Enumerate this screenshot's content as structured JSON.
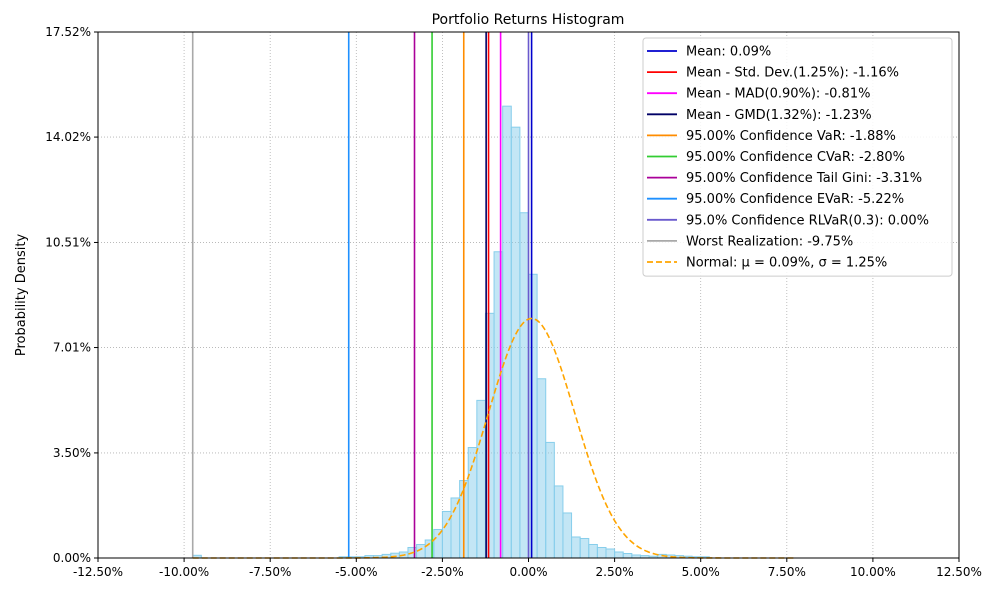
{
  "chart_data": {
    "type": "bar",
    "title": "Portfolio Returns Histogram",
    "ylabel": "Probability Density",
    "xlabel": "",
    "xlim": [
      -0.125,
      0.125
    ],
    "ylim": [
      0,
      0.1752
    ],
    "grid": true,
    "legend_position": "top-right",
    "x_ticks": [
      -0.125,
      -0.1,
      -0.075,
      -0.05,
      -0.025,
      0.0,
      0.025,
      0.05,
      0.075,
      0.1,
      0.125
    ],
    "x_tick_labels": [
      "-12.50%",
      "-10.00%",
      "-7.50%",
      "-5.00%",
      "-2.50%",
      "0.00%",
      "2.50%",
      "5.00%",
      "7.50%",
      "10.00%",
      "12.50%"
    ],
    "y_ticks": [
      0.0,
      0.035,
      0.0701,
      0.1051,
      0.1402,
      0.1752
    ],
    "y_tick_labels": [
      "0.00%",
      "3.50%",
      "7.01%",
      "10.51%",
      "14.02%",
      "17.52%"
    ],
    "histogram": {
      "color": "#87ceeb",
      "edge_color": "#87ceeb",
      "bin_edges": [
        -0.0975,
        -0.095,
        -0.055,
        -0.0525,
        -0.05,
        -0.0475,
        -0.045,
        -0.0425,
        -0.04,
        -0.0375,
        -0.035,
        -0.0325,
        -0.03,
        -0.0275,
        -0.025,
        -0.0225,
        -0.02,
        -0.0175,
        -0.015,
        -0.0125,
        -0.01,
        -0.0075,
        -0.005,
        -0.0025,
        0.0,
        0.0025,
        0.005,
        0.0075,
        0.01,
        0.0125,
        0.015,
        0.0175,
        0.02,
        0.0225,
        0.025,
        0.0275,
        0.03,
        0.0325,
        0.035,
        0.0375,
        0.04,
        0.0425,
        0.045,
        0.0475,
        0.05,
        0.0525
      ],
      "bins": [
        {
          "x0": -0.0975,
          "x1": -0.095,
          "value": 0.0009
        },
        {
          "x0": -0.055,
          "x1": -0.0525,
          "value": 0.0004
        },
        {
          "x0": -0.0525,
          "x1": -0.05,
          "value": 0.0004
        },
        {
          "x0": -0.05,
          "x1": -0.0475,
          "value": 0.0004
        },
        {
          "x0": -0.0475,
          "x1": -0.045,
          "value": 0.0008
        },
        {
          "x0": -0.045,
          "x1": -0.0425,
          "value": 0.0008
        },
        {
          "x0": -0.0425,
          "x1": -0.04,
          "value": 0.0012
        },
        {
          "x0": -0.04,
          "x1": -0.0375,
          "value": 0.0016
        },
        {
          "x0": -0.0375,
          "x1": -0.035,
          "value": 0.002
        },
        {
          "x0": -0.035,
          "x1": -0.0325,
          "value": 0.0035
        },
        {
          "x0": -0.0325,
          "x1": -0.03,
          "value": 0.0045
        },
        {
          "x0": -0.03,
          "x1": -0.0275,
          "value": 0.006
        },
        {
          "x0": -0.0275,
          "x1": -0.025,
          "value": 0.0095
        },
        {
          "x0": -0.025,
          "x1": -0.0225,
          "value": 0.0155
        },
        {
          "x0": -0.0225,
          "x1": -0.02,
          "value": 0.02
        },
        {
          "x0": -0.02,
          "x1": -0.0175,
          "value": 0.0258
        },
        {
          "x0": -0.0175,
          "x1": -0.015,
          "value": 0.0368
        },
        {
          "x0": -0.015,
          "x1": -0.0125,
          "value": 0.0525
        },
        {
          "x0": -0.0125,
          "x1": -0.01,
          "value": 0.0815
        },
        {
          "x0": -0.01,
          "x1": -0.0075,
          "value": 0.102
        },
        {
          "x0": -0.0075,
          "x1": -0.005,
          "value": 0.1505
        },
        {
          "x0": -0.005,
          "x1": -0.0025,
          "value": 0.1435
        },
        {
          "x0": -0.0025,
          "x1": 0.0,
          "value": 0.115
        },
        {
          "x0": 0.0,
          "x1": 0.0025,
          "value": 0.0945
        },
        {
          "x0": 0.0025,
          "x1": 0.005,
          "value": 0.0597
        },
        {
          "x0": 0.005,
          "x1": 0.0075,
          "value": 0.0385
        },
        {
          "x0": 0.0075,
          "x1": 0.01,
          "value": 0.024
        },
        {
          "x0": 0.01,
          "x1": 0.0125,
          "value": 0.015
        },
        {
          "x0": 0.0125,
          "x1": 0.015,
          "value": 0.007
        },
        {
          "x0": 0.015,
          "x1": 0.0175,
          "value": 0.0065
        },
        {
          "x0": 0.0175,
          "x1": 0.02,
          "value": 0.0045
        },
        {
          "x0": 0.02,
          "x1": 0.0225,
          "value": 0.0035
        },
        {
          "x0": 0.0225,
          "x1": 0.025,
          "value": 0.003
        },
        {
          "x0": 0.025,
          "x1": 0.0275,
          "value": 0.002
        },
        {
          "x0": 0.0275,
          "x1": 0.03,
          "value": 0.0015
        },
        {
          "x0": 0.03,
          "x1": 0.0325,
          "value": 0.001
        },
        {
          "x0": 0.0325,
          "x1": 0.035,
          "value": 0.0008
        },
        {
          "x0": 0.035,
          "x1": 0.0375,
          "value": 0.0006
        },
        {
          "x0": 0.0375,
          "x1": 0.04,
          "value": 0.0012
        },
        {
          "x0": 0.04,
          "x1": 0.0425,
          "value": 0.001
        },
        {
          "x0": 0.0425,
          "x1": 0.045,
          "value": 0.0008
        },
        {
          "x0": 0.045,
          "x1": 0.0475,
          "value": 0.0006
        },
        {
          "x0": 0.0475,
          "x1": 0.05,
          "value": 0.0004
        },
        {
          "x0": 0.05,
          "x1": 0.0525,
          "value": 0.0004
        }
      ]
    },
    "vlines": [
      {
        "label": "Mean: 0.09%",
        "x": 0.0009,
        "color": "#0000cd"
      },
      {
        "label": "Mean - Std. Dev.(1.25%): -1.16%",
        "x": -0.0116,
        "color": "#ff0000"
      },
      {
        "label": "Mean - MAD(0.90%): -0.81%",
        "x": -0.0081,
        "color": "#ff00ff"
      },
      {
        "label": "Mean - GMD(1.32%): -1.23%",
        "x": -0.0123,
        "color": "#000066"
      },
      {
        "label": "95.00% Confidence VaR: -1.88%",
        "x": -0.0188,
        "color": "#ff8c00"
      },
      {
        "label": "95.00% Confidence CVaR: -2.80%",
        "x": -0.028,
        "color": "#32cd32"
      },
      {
        "label": "95.00% Confidence Tail Gini: -3.31%",
        "x": -0.0331,
        "color": "#aa0099"
      },
      {
        "label": "95.00% Confidence EVaR: -5.22%",
        "x": -0.0522,
        "color": "#1e90ff"
      },
      {
        "label": "95.0% Confidence RLVaR(0.3): 0.00%",
        "x": 0.0,
        "color": "#6a5acd"
      },
      {
        "label": "Worst Realization: -9.75%",
        "x": -0.0975,
        "color": "#a9a9a9"
      }
    ],
    "normal_curve": {
      "label": "Normal: $\\mu = 0.09\\%$, $\\sigma = 1.25\\%$",
      "mu": 0.0009,
      "sigma": 0.0125,
      "color": "#ffa500",
      "x_range": [
        -0.0975,
        0.0775
      ]
    },
    "legend": {
      "entries": [
        {
          "text": "Mean: 0.09%",
          "color": "#0000cd",
          "style": "solid"
        },
        {
          "text": "Mean - Std. Dev.(1.25%): -1.16%",
          "color": "#ff0000",
          "style": "solid"
        },
        {
          "text": "Mean - MAD(0.90%): -0.81%",
          "color": "#ff00ff",
          "style": "solid"
        },
        {
          "text": "Mean - GMD(1.32%): -1.23%",
          "color": "#000066",
          "style": "solid"
        },
        {
          "text": "95.00% Confidence VaR: -1.88%",
          "color": "#ff8c00",
          "style": "solid"
        },
        {
          "text": "95.00% Confidence CVaR: -2.80%",
          "color": "#32cd32",
          "style": "solid"
        },
        {
          "text": "95.00% Confidence Tail Gini: -3.31%",
          "color": "#aa0099",
          "style": "solid"
        },
        {
          "text": "95.00% Confidence EVaR: -5.22%",
          "color": "#1e90ff",
          "style": "solid"
        },
        {
          "text": "95.0% Confidence RLVaR(0.3): 0.00%",
          "color": "#6a5acd",
          "style": "solid"
        },
        {
          "text": "Worst Realization: -9.75%",
          "color": "#a9a9a9",
          "style": "solid"
        },
        {
          "text": "Normal: μ = 0.09%, σ = 1.25%",
          "color": "#ffa500",
          "style": "dashed"
        }
      ]
    }
  }
}
